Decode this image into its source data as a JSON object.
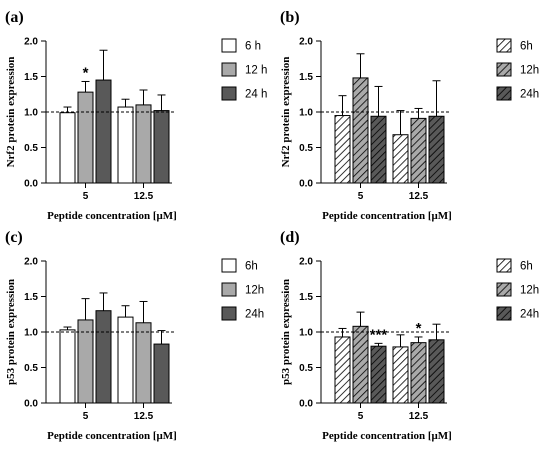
{
  "chart_data": [
    {
      "id": "a",
      "type": "bar",
      "panel_label": "(a)",
      "ylabel": "Nrf2 protein expression",
      "xlabel": "Peptide concentration [μM]",
      "categories": [
        "5",
        "12.5"
      ],
      "ylim": [
        0,
        2.0
      ],
      "yticks": [
        "0.0",
        "0.5",
        "1.0",
        "1.5",
        "2.0"
      ],
      "reference_line": 1.0,
      "legend_position": "right",
      "series": [
        {
          "name": "6 h",
          "fill": "#ffffff",
          "pattern": "solid",
          "values": [
            0.99,
            1.07
          ],
          "errors": [
            0.08,
            0.11
          ]
        },
        {
          "name": "12 h",
          "fill": "#a9a9a9",
          "pattern": "solid",
          "values": [
            1.28,
            1.1
          ],
          "errors": [
            0.15,
            0.21
          ]
        },
        {
          "name": "24 h",
          "fill": "#595959",
          "pattern": "solid",
          "values": [
            1.45,
            1.02
          ],
          "errors": [
            0.42,
            0.22
          ]
        }
      ],
      "annotations": [
        {
          "text": "*",
          "category": "5",
          "series": "12 h"
        }
      ]
    },
    {
      "id": "b",
      "type": "bar",
      "panel_label": "(b)",
      "ylabel": "Nrf2 protein expression",
      "xlabel": "Peptide concentration [μM]",
      "categories": [
        "5",
        "12.5"
      ],
      "ylim": [
        0,
        2.0
      ],
      "yticks": [
        "0.0",
        "0.5",
        "1.0",
        "1.5",
        "2.0"
      ],
      "reference_line": 1.0,
      "legend_position": "right",
      "series": [
        {
          "name": "6h",
          "fill": "#ffffff",
          "pattern": "hatched",
          "values": [
            0.95,
            0.68
          ],
          "errors": [
            0.28,
            0.34
          ]
        },
        {
          "name": "12h",
          "fill": "#a9a9a9",
          "pattern": "hatched",
          "values": [
            1.48,
            0.91
          ],
          "errors": [
            0.34,
            0.14
          ]
        },
        {
          "name": "24h",
          "fill": "#595959",
          "pattern": "hatched",
          "values": [
            0.94,
            0.94
          ],
          "errors": [
            0.42,
            0.5
          ]
        }
      ],
      "annotations": []
    },
    {
      "id": "c",
      "type": "bar",
      "panel_label": "(c)",
      "ylabel": "p53 protein expression",
      "xlabel": "Peptide concentration [μM]",
      "categories": [
        "5",
        "12.5"
      ],
      "ylim": [
        0,
        2.0
      ],
      "yticks": [
        "0.0",
        "0.5",
        "1.0",
        "1.5",
        "2.0"
      ],
      "reference_line": 1.0,
      "legend_position": "right",
      "series": [
        {
          "name": "6h",
          "fill": "#ffffff",
          "pattern": "solid",
          "values": [
            1.03,
            1.21
          ],
          "errors": [
            0.04,
            0.16
          ]
        },
        {
          "name": "12h",
          "fill": "#a9a9a9",
          "pattern": "solid",
          "values": [
            1.17,
            1.13
          ],
          "errors": [
            0.3,
            0.3
          ]
        },
        {
          "name": "24h",
          "fill": "#595959",
          "pattern": "solid",
          "values": [
            1.3,
            0.83
          ],
          "errors": [
            0.25,
            0.19
          ]
        }
      ],
      "annotations": []
    },
    {
      "id": "d",
      "type": "bar",
      "panel_label": "(d)",
      "ylabel": "p53 protein expression",
      "xlabel": "Peptide concentration [μM]",
      "categories": [
        "5",
        "12.5"
      ],
      "ylim": [
        0,
        2.0
      ],
      "yticks": [
        "0.0",
        "0.5",
        "1.0",
        "1.5",
        "2.0"
      ],
      "reference_line": 1.0,
      "legend_position": "right",
      "series": [
        {
          "name": "6h",
          "fill": "#ffffff",
          "pattern": "hatched",
          "values": [
            0.93,
            0.79
          ],
          "errors": [
            0.12,
            0.17
          ]
        },
        {
          "name": "12h",
          "fill": "#a9a9a9",
          "pattern": "hatched",
          "values": [
            1.08,
            0.85
          ],
          "errors": [
            0.2,
            0.08
          ]
        },
        {
          "name": "24h",
          "fill": "#595959",
          "pattern": "hatched",
          "values": [
            0.8,
            0.89
          ],
          "errors": [
            0.04,
            0.22
          ]
        }
      ],
      "annotations": [
        {
          "text": "***",
          "category": "5",
          "series": "24h"
        },
        {
          "text": "*",
          "category": "12.5",
          "series": "12h"
        }
      ]
    }
  ]
}
